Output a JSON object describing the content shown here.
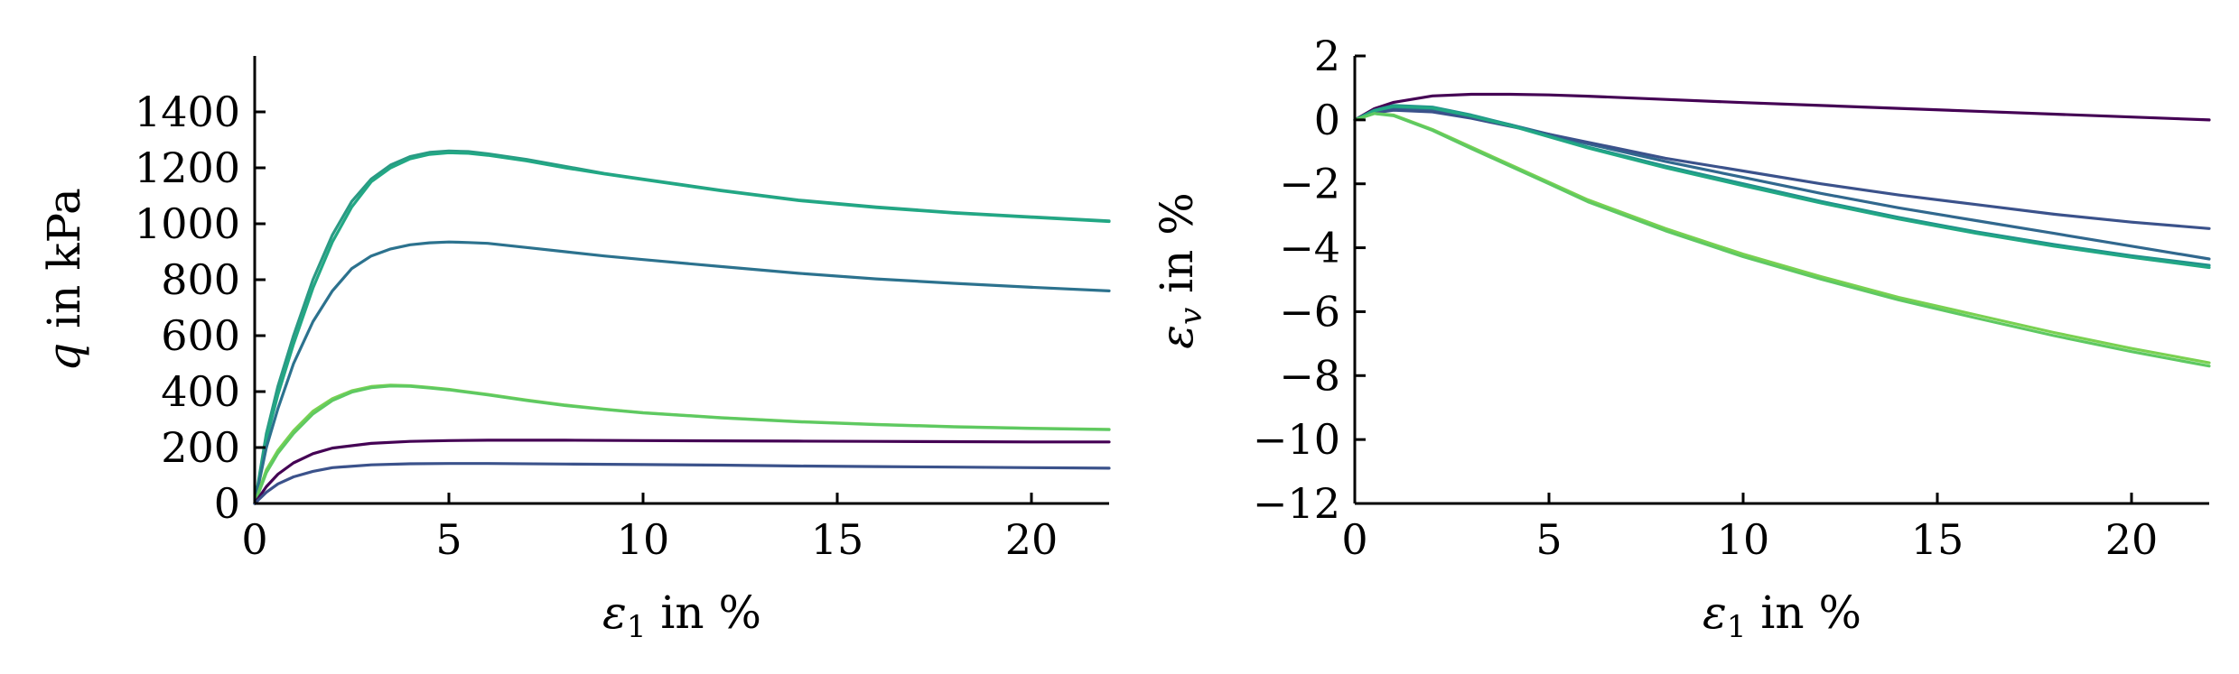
{
  "chart_data": [
    {
      "type": "line",
      "xlim": [
        0,
        22
      ],
      "ylim": [
        0,
        1600
      ],
      "xticks": [
        0,
        5,
        10,
        15,
        20
      ],
      "yticks": [
        0,
        200,
        400,
        600,
        800,
        1000,
        1200,
        1400
      ],
      "xlabel_symbol": "ε",
      "xlabel_sub": "1",
      "xlabel_suffix": " in %",
      "ylabel_symbol": "q",
      "ylabel_suffix": " in kPa",
      "grid": false,
      "legend": "none",
      "series": [
        {
          "color": "#2a9a84",
          "x": [
            0,
            0.3,
            0.6,
            1,
            1.5,
            2,
            2.5,
            3,
            3.5,
            4,
            4.5,
            5,
            5.5,
            6,
            7,
            8,
            9,
            10,
            12,
            14,
            16,
            18,
            20,
            22
          ],
          "y": [
            0,
            250,
            420,
            600,
            800,
            960,
            1080,
            1160,
            1210,
            1240,
            1255,
            1260,
            1258,
            1250,
            1230,
            1205,
            1180,
            1160,
            1120,
            1085,
            1060,
            1040,
            1025,
            1010
          ]
        },
        {
          "color": "#22a884",
          "x": [
            0,
            0.3,
            0.6,
            1,
            1.5,
            2,
            2.5,
            3,
            3.5,
            4,
            4.5,
            5,
            5.5,
            6,
            7,
            8,
            9,
            10,
            12,
            14,
            16,
            18,
            20,
            22
          ],
          "y": [
            0,
            230,
            390,
            570,
            770,
            935,
            1060,
            1150,
            1200,
            1232,
            1248,
            1254,
            1252,
            1245,
            1225,
            1200,
            1178,
            1158,
            1118,
            1083,
            1058,
            1038,
            1023,
            1008
          ]
        },
        {
          "color": "#2c728e",
          "x": [
            0,
            0.3,
            0.6,
            1,
            1.5,
            2,
            2.5,
            3,
            3.5,
            4,
            4.5,
            5,
            5.5,
            6,
            7,
            8,
            9,
            10,
            12,
            14,
            16,
            18,
            20,
            22
          ],
          "y": [
            0,
            200,
            340,
            500,
            650,
            760,
            840,
            885,
            910,
            925,
            932,
            935,
            933,
            930,
            915,
            900,
            885,
            872,
            847,
            823,
            803,
            787,
            773,
            760
          ]
        },
        {
          "color": "#7ad151",
          "x": [
            0,
            0.3,
            0.6,
            1,
            1.5,
            2,
            2.5,
            3,
            3.5,
            4,
            4.5,
            5,
            6,
            7,
            8,
            9,
            10,
            12,
            14,
            16,
            18,
            20,
            22
          ],
          "y": [
            0,
            120,
            190,
            260,
            330,
            375,
            403,
            418,
            423,
            421,
            415,
            408,
            390,
            370,
            352,
            337,
            325,
            307,
            293,
            283,
            275,
            269,
            265
          ]
        },
        {
          "color": "#5ec962",
          "x": [
            0,
            0.3,
            0.6,
            1,
            1.5,
            2,
            2.5,
            3,
            3.5,
            4,
            4.5,
            5,
            6,
            7,
            8,
            9,
            10,
            12,
            14,
            16,
            18,
            20,
            22
          ],
          "y": [
            0,
            110,
            180,
            250,
            320,
            368,
            398,
            414,
            420,
            419,
            413,
            406,
            388,
            368,
            350,
            336,
            324,
            306,
            292,
            282,
            274,
            268,
            264
          ]
        },
        {
          "color": "#440154",
          "x": [
            0,
            0.3,
            0.6,
            1,
            1.5,
            2,
            3,
            4,
            5,
            6,
            8,
            10,
            12,
            14,
            16,
            18,
            20,
            22
          ],
          "y": [
            0,
            60,
            105,
            145,
            178,
            198,
            215,
            222,
            225,
            226,
            226,
            225,
            224,
            223,
            222,
            221,
            220,
            220
          ]
        },
        {
          "color": "#3b528b",
          "x": [
            0,
            0.3,
            0.6,
            1,
            1.5,
            2,
            3,
            4,
            5,
            6,
            8,
            10,
            12,
            14,
            16,
            18,
            20,
            22
          ],
          "y": [
            0,
            40,
            70,
            95,
            115,
            128,
            138,
            142,
            143,
            143,
            141,
            139,
            137,
            134,
            132,
            130,
            128,
            126
          ]
        }
      ]
    },
    {
      "type": "line",
      "xlim": [
        0,
        22
      ],
      "ylim": [
        -12,
        2
      ],
      "xticks": [
        0,
        5,
        10,
        15,
        20
      ],
      "yticks": [
        -12,
        -10,
        -8,
        -6,
        -4,
        -2,
        0,
        2
      ],
      "xlabel_symbol": "ε",
      "xlabel_sub": "1",
      "xlabel_suffix": " in %",
      "ylabel_symbol": "ε",
      "ylabel_sub": "v",
      "ylabel_suffix": " in %",
      "grid": false,
      "legend": "none",
      "series": [
        {
          "color": "#440154",
          "x": [
            0,
            0.5,
            1,
            2,
            3,
            4,
            5,
            6,
            8,
            10,
            12,
            14,
            16,
            18,
            20,
            22
          ],
          "y": [
            0,
            0.35,
            0.55,
            0.75,
            0.8,
            0.8,
            0.78,
            0.74,
            0.64,
            0.54,
            0.45,
            0.36,
            0.27,
            0.18,
            0.09,
            0.0
          ]
        },
        {
          "color": "#31688e",
          "x": [
            0,
            0.5,
            1,
            2,
            3,
            4,
            5,
            6,
            8,
            10,
            12,
            14,
            16,
            18,
            20,
            22
          ],
          "y": [
            0,
            0.25,
            0.35,
            0.3,
            0.1,
            -0.15,
            -0.45,
            -0.75,
            -1.3,
            -1.8,
            -2.3,
            -2.75,
            -3.15,
            -3.55,
            -3.95,
            -4.35
          ]
        },
        {
          "color": "#3b528b",
          "x": [
            0,
            0.5,
            1,
            2,
            3,
            4,
            5,
            6,
            8,
            10,
            12,
            14,
            16,
            18,
            20,
            22
          ],
          "y": [
            0,
            0.22,
            0.3,
            0.25,
            0.05,
            -0.2,
            -0.45,
            -0.7,
            -1.2,
            -1.6,
            -2.0,
            -2.35,
            -2.65,
            -2.95,
            -3.2,
            -3.4
          ]
        },
        {
          "color": "#21918c",
          "x": [
            0,
            0.5,
            1,
            2,
            3,
            4,
            5,
            6,
            8,
            10,
            12,
            14,
            16,
            18,
            20,
            22
          ],
          "y": [
            0,
            0.3,
            0.45,
            0.4,
            0.15,
            -0.15,
            -0.5,
            -0.85,
            -1.45,
            -2.0,
            -2.55,
            -3.05,
            -3.5,
            -3.9,
            -4.25,
            -4.55
          ]
        },
        {
          "color": "#22a884",
          "x": [
            0,
            0.5,
            1,
            2,
            3,
            4,
            5,
            6,
            8,
            10,
            12,
            14,
            16,
            18,
            20,
            22
          ],
          "y": [
            0,
            0.28,
            0.42,
            0.37,
            0.12,
            -0.18,
            -0.53,
            -0.88,
            -1.5,
            -2.06,
            -2.6,
            -3.1,
            -3.55,
            -3.95,
            -4.3,
            -4.62
          ]
        },
        {
          "color": "#7ad151",
          "x": [
            0,
            0.5,
            1,
            2,
            3,
            4,
            5,
            6,
            8,
            10,
            12,
            14,
            16,
            18,
            20,
            22
          ],
          "y": [
            0,
            0.2,
            0.15,
            -0.3,
            -0.85,
            -1.4,
            -1.95,
            -2.5,
            -3.4,
            -4.2,
            -4.9,
            -5.55,
            -6.1,
            -6.65,
            -7.15,
            -7.6
          ]
        },
        {
          "color": "#5ec962",
          "x": [
            0,
            0.5,
            1,
            2,
            3,
            4,
            5,
            6,
            8,
            10,
            12,
            14,
            16,
            18,
            20,
            22
          ],
          "y": [
            0,
            0.2,
            0.13,
            -0.33,
            -0.9,
            -1.45,
            -2.0,
            -2.56,
            -3.47,
            -4.28,
            -4.98,
            -5.63,
            -6.2,
            -6.75,
            -7.25,
            -7.7
          ]
        }
      ]
    }
  ]
}
